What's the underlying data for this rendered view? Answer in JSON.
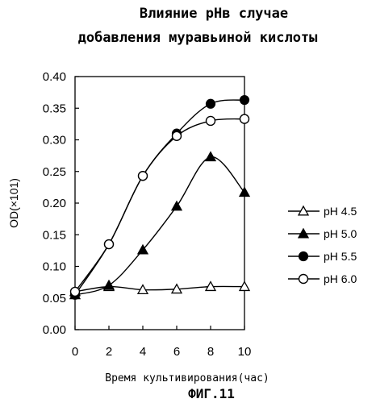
{
  "figure_label": "ФИГ.11",
  "chart_data": {
    "type": "line",
    "title_line1": "Влияние pHв случае",
    "title_line2": "добавления муравьиной кислоты",
    "xlabel": "Время культивирования(час)",
    "ylabel": "OD(×101)",
    "x": [
      0,
      2,
      4,
      6,
      8,
      10
    ],
    "xlim": [
      0,
      10
    ],
    "ylim": [
      0.0,
      0.4
    ],
    "x_ticks": [
      "0",
      "2",
      "4",
      "6",
      "8",
      "10"
    ],
    "y_ticks": [
      "0.00",
      "0.05",
      "0.10",
      "0.15",
      "0.20",
      "0.25",
      "0.30",
      "0.35",
      "0.40"
    ],
    "grid": false,
    "legend_position": "right",
    "series": [
      {
        "name": "pH 4.5",
        "marker": "triangle-open",
        "values": [
          0.06,
          0.068,
          0.063,
          0.064,
          0.068,
          0.068
        ]
      },
      {
        "name": "pH 5.0",
        "marker": "triangle-filled",
        "values": [
          0.055,
          0.07,
          0.126,
          0.195,
          0.273,
          0.217
        ]
      },
      {
        "name": "pH 5.5",
        "marker": "circle-filled",
        "values": [
          0.055,
          0.135,
          0.243,
          0.31,
          0.357,
          0.363
        ]
      },
      {
        "name": "pH 6.0",
        "marker": "circle-open",
        "values": [
          0.06,
          0.135,
          0.243,
          0.306,
          0.33,
          0.333
        ]
      }
    ]
  }
}
